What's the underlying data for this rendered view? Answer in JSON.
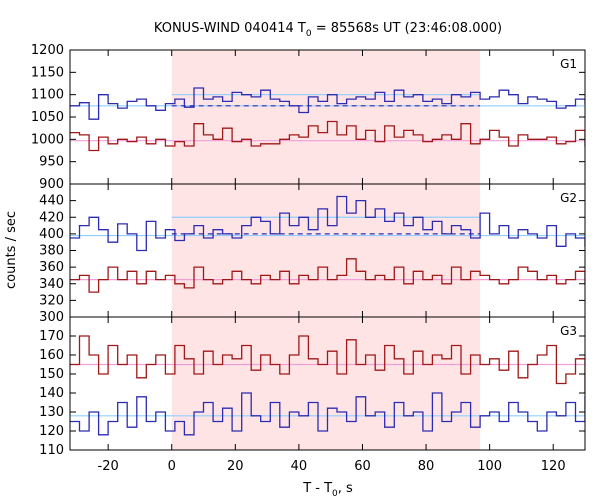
{
  "chart_data": {
    "type": "line",
    "title": "KONUS-WIND 040414 T",
    "title_sub": "0",
    "title_rest": " = 85568s UT (23:46:08.000)",
    "xlabel": "T - T",
    "xlabel_sub": "0",
    "xlabel_rest": ", s",
    "ylabel": "counts / sec",
    "xlim": [
      -32,
      130
    ],
    "x_ticks": [
      "-20",
      "0",
      "20",
      "40",
      "60",
      "80",
      "100",
      "120"
    ],
    "x_tick_values": [
      -20,
      0,
      20,
      40,
      60,
      80,
      100,
      120
    ],
    "highlight_interval": [
      0,
      97
    ],
    "colors": {
      "highlight": "#ffe4e6",
      "upper_series": "#2c2cb0",
      "lower_series": "#a01818",
      "upper_background": "#8fd0ff",
      "lower_background": "#f0a0d8"
    },
    "bin_start": -32,
    "bin_width": 3,
    "panels": [
      {
        "label": "G1",
        "ylim": [
          900,
          1200
        ],
        "y_ticks": [
          "1200",
          "1150",
          "1100",
          "1050",
          "1000",
          "950",
          "900"
        ],
        "y_tick_values": [
          1200,
          1150,
          1100,
          1050,
          1000,
          950,
          900
        ],
        "series": [
          {
            "values": [
              1075,
              1082,
              1045,
              1100,
              1080,
              1070,
              1085,
              1090,
              1075,
              1065,
              1080,
              1090,
              1072,
              1115,
              1090,
              1095,
              1085,
              1105,
              1100,
              1095,
              1110,
              1090,
              1085,
              1075,
              1060,
              1095,
              1085,
              1100,
              1080,
              1090,
              1095,
              1090,
              1105,
              1085,
              1110,
              1095,
              1100,
              1085,
              1090,
              1080,
              1100,
              1095,
              1105,
              1090,
              1095,
              1110,
              1100,
              1080,
              1095,
              1090,
              1085,
              1070,
              1075,
              1090,
              1080,
              1070,
              1085,
              1075,
              1080,
              1060,
              1090,
              1065,
              1080,
              1090
            ],
            "baseline": 1075,
            "mean_level": 1100,
            "dashed_level": 1075
          },
          {
            "values": [
              1015,
              1010,
              975,
              1005,
              990,
              1000,
              995,
              1005,
              990,
              1000,
              985,
              995,
              985,
              1035,
              1010,
              1000,
              1025,
              995,
              1000,
              985,
              990,
              990,
              1000,
              1010,
              1005,
              1030,
              1015,
              1040,
              1010,
              1030,
              1000,
              1020,
              995,
              1030,
              1005,
              1020,
              1010,
              995,
              1000,
              1010,
              1000,
              1035,
              990,
              1000,
              1020,
              1005,
              985,
              1010,
              1000,
              1000,
              1005,
              990,
              995,
              1020,
              985,
              1000,
              1010,
              990,
              1005,
              980,
              1015,
              995,
              1010,
              1000
            ],
            "baseline": 997
          }
        ]
      },
      {
        "label": "G2",
        "ylim": [
          300,
          460
        ],
        "y_ticks": [
          "440",
          "420",
          "400",
          "380",
          "360",
          "340",
          "320",
          "300"
        ],
        "y_tick_values": [
          440,
          420,
          400,
          380,
          360,
          340,
          320,
          300
        ],
        "series": [
          {
            "values": [
              395,
              410,
              420,
              405,
              390,
              412,
              400,
              380,
              415,
              395,
              405,
              392,
              400,
              410,
              395,
              405,
              400,
              395,
              410,
              420,
              415,
              400,
              425,
              410,
              420,
              405,
              430,
              410,
              445,
              425,
              440,
              420,
              430,
              415,
              425,
              410,
              420,
              405,
              415,
              400,
              410,
              405,
              395,
              425,
              400,
              410,
              395,
              405,
              400,
              395,
              410,
              385,
              400,
              395,
              385,
              400,
              390,
              405,
              395,
              390,
              400,
              395,
              385,
              400
            ],
            "baseline": 398,
            "mean_level": 420,
            "dashed_level": 400
          },
          {
            "values": [
              345,
              350,
              330,
              345,
              360,
              345,
              355,
              340,
              355,
              345,
              350,
              340,
              335,
              360,
              345,
              340,
              345,
              355,
              345,
              340,
              350,
              345,
              355,
              340,
              350,
              345,
              360,
              345,
              350,
              370,
              355,
              345,
              350,
              345,
              360,
              340,
              355,
              345,
              350,
              340,
              360,
              345,
              355,
              350,
              345,
              340,
              345,
              360,
              355,
              345,
              350,
              340,
              345,
              355,
              340,
              350,
              345,
              340,
              355,
              345,
              350,
              345,
              340,
              360
            ],
            "baseline": 345
          }
        ]
      },
      {
        "label": "G3",
        "ylim": [
          110,
          180
        ],
        "y_ticks": [
          "170",
          "160",
          "150",
          "140",
          "130",
          "120",
          "110"
        ],
        "y_tick_values": [
          170,
          160,
          150,
          140,
          130,
          120,
          110
        ],
        "series": [
          {
            "values": [
              125,
              120,
              130,
              118,
              125,
              135,
              122,
              138,
              125,
              130,
              120,
              125,
              118,
              130,
              135,
              125,
              132,
              120,
              140,
              128,
              125,
              135,
              122,
              130,
              128,
              135,
              120,
              132,
              130,
              125,
              138,
              128,
              130,
              122,
              135,
              128,
              130,
              120,
              140,
              125,
              130,
              135,
              122,
              128,
              130,
              125,
              135,
              130,
              125,
              120,
              130,
              128,
              135,
              125,
              138,
              128,
              130,
              125,
              120,
              132,
              128,
              125,
              130,
              122
            ],
            "baseline": 128
          },
          {
            "values": [
              155,
              170,
              160,
              150,
              165,
              155,
              160,
              148,
              155,
              160,
              150,
              165,
              158,
              150,
              162,
              155,
              160,
              158,
              165,
              152,
              160,
              155,
              150,
              160,
              170,
              158,
              155,
              162,
              150,
              168,
              155,
              160,
              152,
              165,
              158,
              150,
              162,
              155,
              160,
              158,
              165,
              150,
              160,
              155,
              158,
              152,
              162,
              148,
              155,
              160,
              165,
              145,
              150,
              158,
              140,
              150,
              160,
              155,
              165,
              150,
              158,
              160,
              155,
              165
            ],
            "baseline": 155
          }
        ]
      }
    ]
  }
}
